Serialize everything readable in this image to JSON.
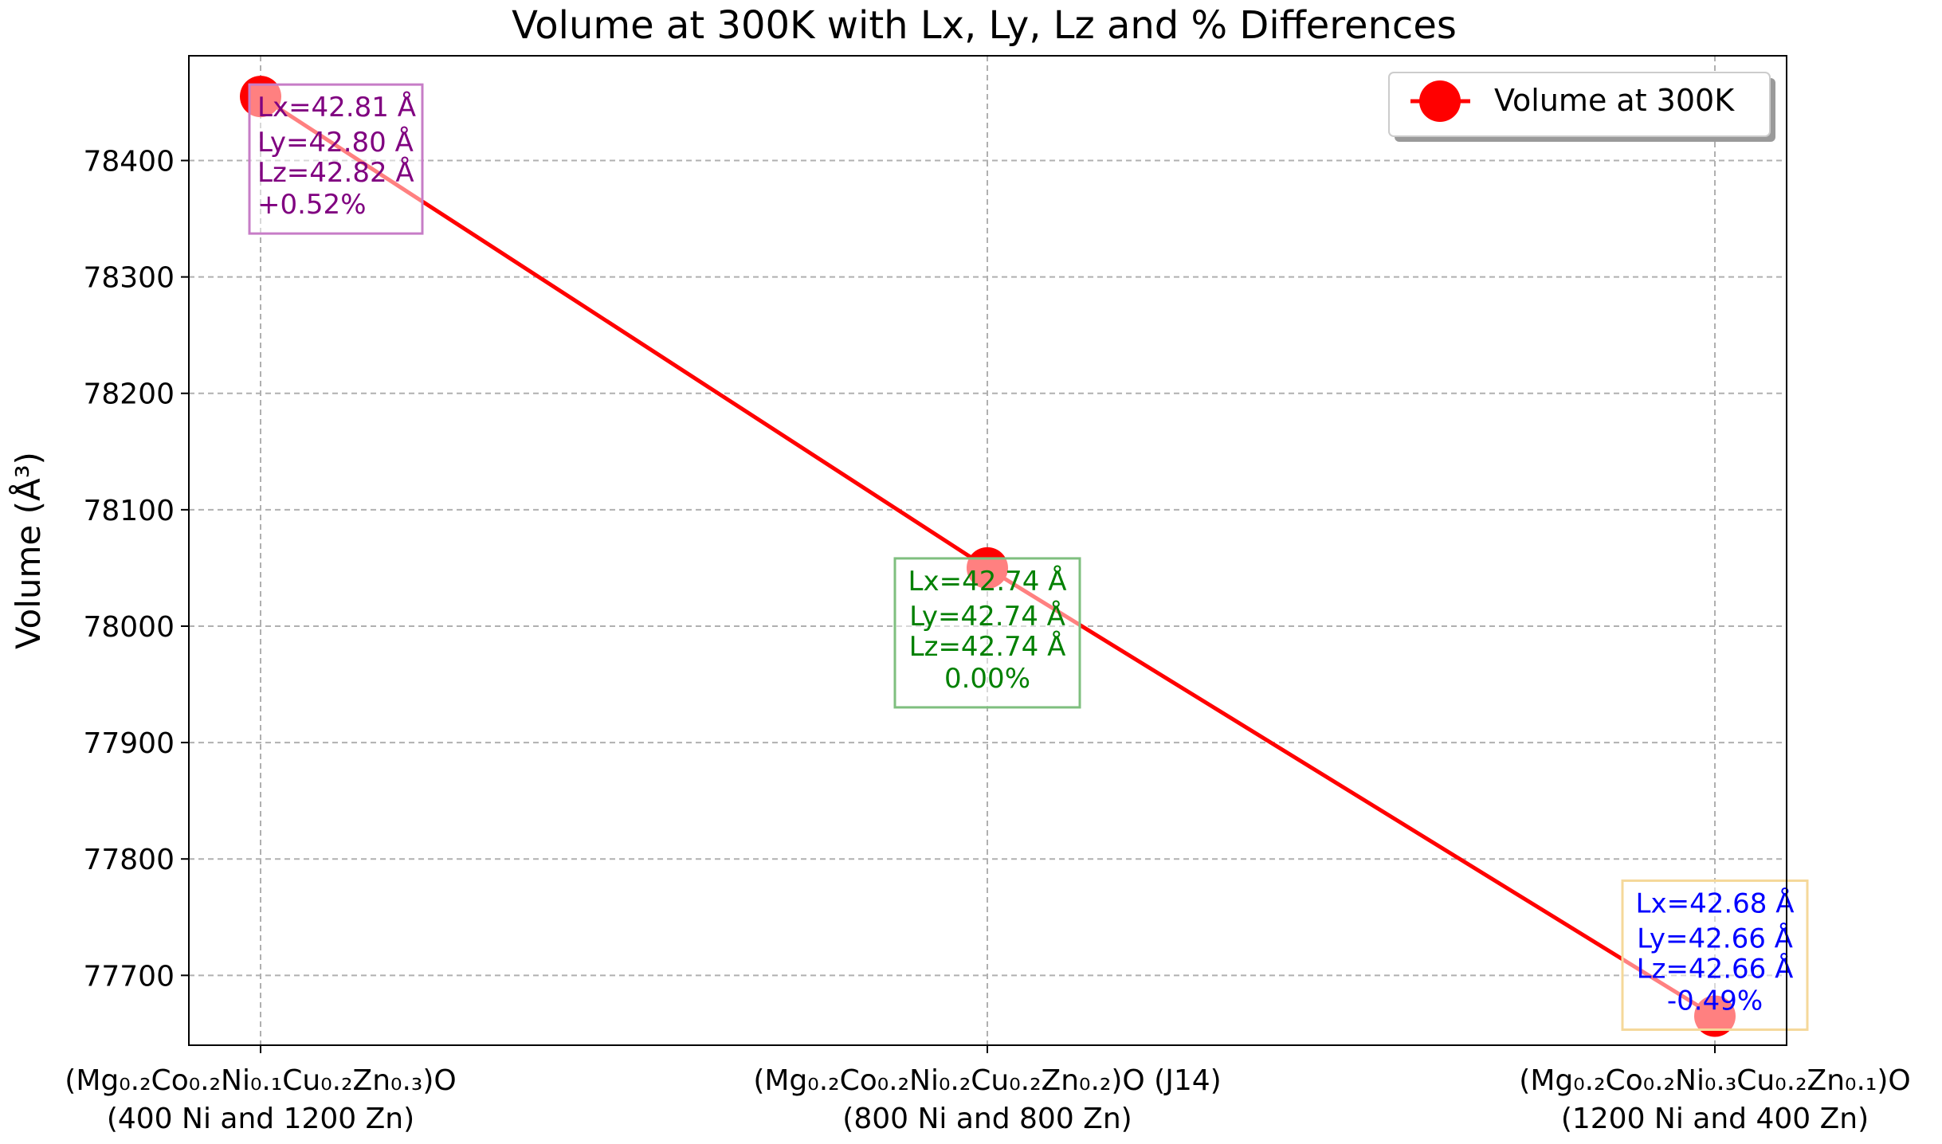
{
  "chart_data": {
    "type": "line",
    "title": "Volume at 300K with Lx, Ly, Lz and % Differences",
    "xlabel": "",
    "ylabel": "Volume (Å³)",
    "ylim": [
      77640,
      78490
    ],
    "yticks": [
      77700,
      77800,
      77900,
      78000,
      78100,
      78200,
      78300,
      78400
    ],
    "grid": true,
    "legend_position": "top-right",
    "categories": [
      {
        "line1": "(Mg₀.₂Co₀.₂Ni₀.₁Cu₀.₂Zn₀.₃)O",
        "line2": "(400 Ni and 1200 Zn)"
      },
      {
        "line1": "(Mg₀.₂Co₀.₂Ni₀.₂Cu₀.₂Zn₀.₂)O (J14)",
        "line2": "(800 Ni and 800 Zn)"
      },
      {
        "line1": "(Mg₀.₂Co₀.₂Ni₀.₃Cu₀.₂Zn₀.₁)O",
        "line2": "(1200 Ni and 400 Zn)"
      }
    ],
    "series": [
      {
        "name": "Volume at 300K",
        "color": "#ff0000",
        "values": [
          78455,
          78050,
          77665
        ]
      }
    ],
    "annotations": [
      {
        "lines": [
          "Lx=42.81 Å",
          "Ly=42.80 Å",
          "Lz=42.82 Å",
          "+0.52%"
        ],
        "text_color": "#800080",
        "border_color": "#c77dc7"
      },
      {
        "lines": [
          "Lx=42.74 Å",
          "Ly=42.74 Å",
          "Lz=42.74 Å",
          "0.00%"
        ],
        "text_color": "#008000",
        "border_color": "#7fbf7f"
      },
      {
        "lines": [
          "Lx=42.68 Å",
          "Ly=42.66 Å",
          "Lz=42.66 Å",
          "-0.49%"
        ],
        "text_color": "#0000ff",
        "border_color": "#f5d89a"
      }
    ]
  }
}
